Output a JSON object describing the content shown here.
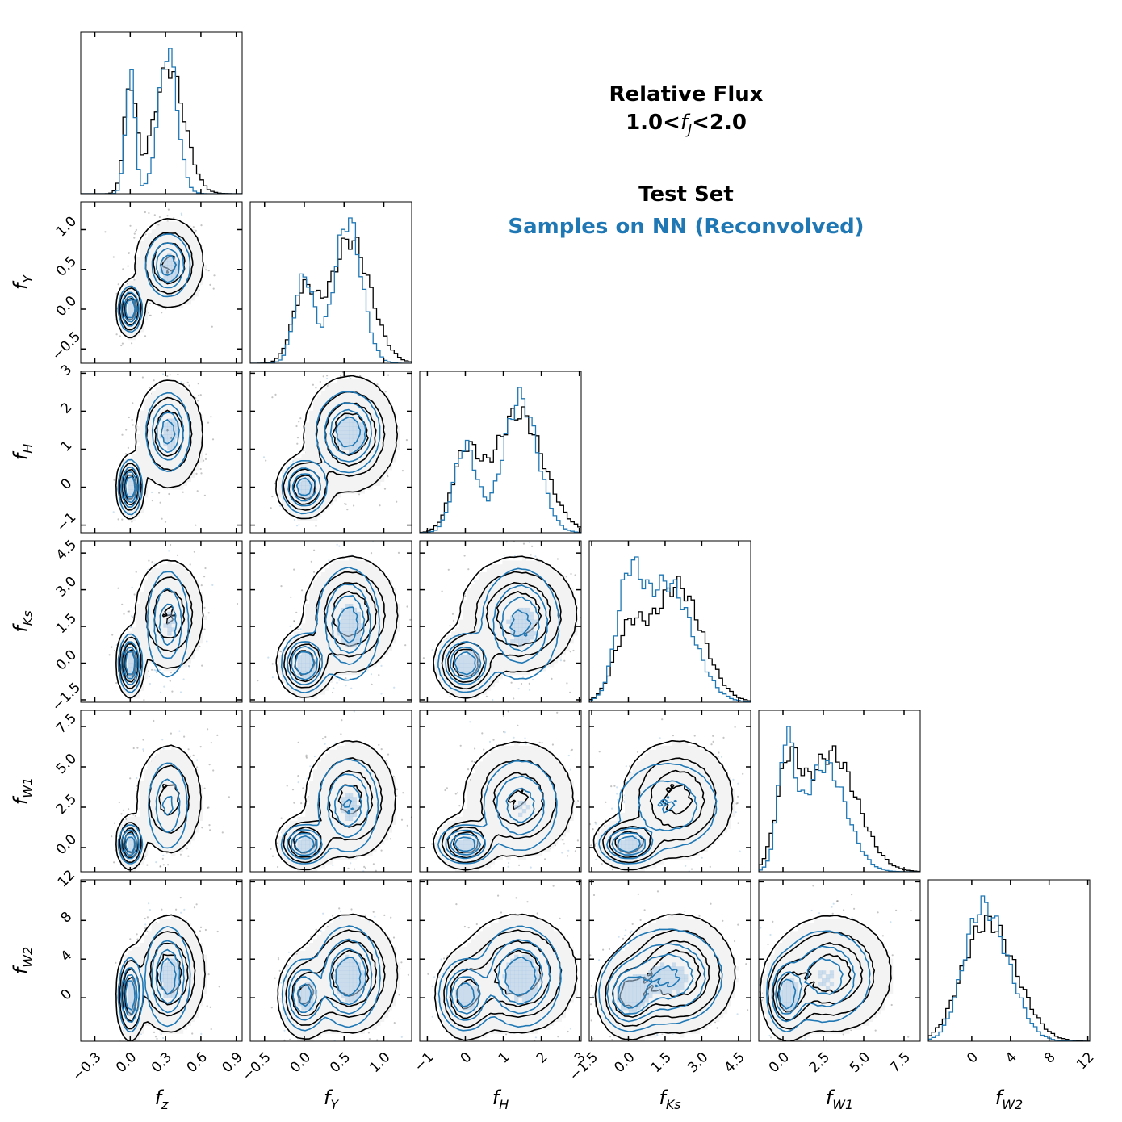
{
  "chart_data": {
    "type": "corner",
    "title": {
      "line1": "Relative Flux",
      "line2_prefix": "1.0<",
      "line2_var": "f",
      "line2_sub": "J",
      "line2_suffix": "<2.0"
    },
    "legend": [
      {
        "name": "Test Set",
        "color": "#000000"
      },
      {
        "name": "Samples on NN (Reconvolved)",
        "color": "#1f77b4"
      }
    ],
    "variables": [
      {
        "key": "fz",
        "base": "f",
        "sub": "z",
        "range": [
          -0.42,
          0.95
        ],
        "ticks": [
          -0.3,
          0.0,
          0.3,
          0.6,
          0.9
        ],
        "tick_labels": [
          "−0.3",
          "0.0",
          "0.3",
          "0.6",
          "0.9"
        ]
      },
      {
        "key": "fY",
        "base": "f",
        "sub": "Y",
        "range": [
          -0.68,
          1.35
        ],
        "ticks": [
          -0.5,
          0.0,
          0.5,
          1.0
        ],
        "tick_labels": [
          "−0.5",
          "0.0",
          "0.5",
          "1.0"
        ]
      },
      {
        "key": "fH",
        "base": "f",
        "sub": "H",
        "range": [
          -1.2,
          3.05
        ],
        "ticks": [
          -1,
          0,
          1,
          2,
          3
        ],
        "tick_labels": [
          "−1",
          "0",
          "1",
          "2",
          "3"
        ]
      },
      {
        "key": "fKs",
        "base": "f",
        "sub": "Ks",
        "range": [
          -1.6,
          5.0
        ],
        "ticks": [
          -1.5,
          0.0,
          1.5,
          3.0,
          4.5
        ],
        "tick_labels": [
          "−1.5",
          "0.0",
          "1.5",
          "3.0",
          "4.5"
        ]
      },
      {
        "key": "fW1",
        "base": "f",
        "sub": "W1",
        "range": [
          -1.5,
          8.5
        ],
        "ticks": [
          0.0,
          2.5,
          5.0,
          7.5
        ],
        "tick_labels": [
          "0.0",
          "2.5",
          "5.0",
          "7.5"
        ]
      },
      {
        "key": "fW2",
        "base": "f",
        "sub": "W2",
        "range": [
          -4.5,
          12.2
        ],
        "ticks": [
          0,
          4,
          8,
          12
        ],
        "tick_labels": [
          "0",
          "4",
          "8",
          "12"
        ]
      }
    ],
    "series": [
      {
        "name": "Test Set",
        "color": "#000000",
        "modes": [
          {
            "weight": 0.25,
            "mean": [
              0.0,
              0.0,
              0.0,
              0.0,
              0.3,
              0.2
            ],
            "std": [
              0.05,
              0.15,
              0.35,
              0.6,
              0.7,
              2.0
            ]
          },
          {
            "weight": 0.75,
            "mean": [
              0.33,
              0.58,
              1.4,
              2.0,
              3.0,
              2.5
            ],
            "std": [
              0.13,
              0.25,
              0.65,
              1.0,
              1.6,
              2.6
            ]
          }
        ]
      },
      {
        "name": "Samples on NN (Reconvolved)",
        "color": "#1f77b4",
        "modes": [
          {
            "weight": 0.3,
            "mean": [
              0.0,
              0.0,
              0.0,
              0.0,
              0.2,
              0.3
            ],
            "std": [
              0.04,
              0.12,
              0.3,
              0.5,
              0.5,
              1.6
            ]
          },
          {
            "weight": 0.7,
            "mean": [
              0.32,
              0.55,
              1.45,
              1.6,
              2.6,
              2.2
            ],
            "std": [
              0.08,
              0.17,
              0.45,
              1.0,
              1.3,
              2.2
            ]
          }
        ]
      }
    ],
    "grid": false
  }
}
